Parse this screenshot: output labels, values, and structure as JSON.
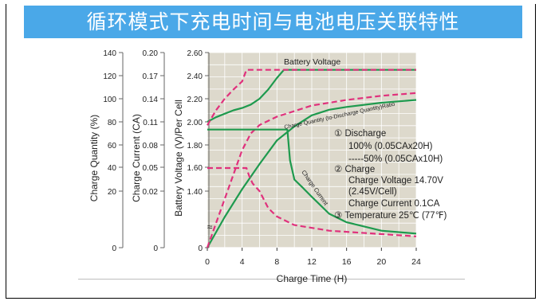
{
  "slide": {
    "title": "循环模式下充电时间与电池电压关联特性"
  },
  "chart_data": {
    "type": "line",
    "xlabel": "Charge Time (H)",
    "xlim": [
      0,
      24
    ],
    "x_ticks": [
      "0",
      "4",
      "8",
      "12",
      "16",
      "20",
      "24"
    ],
    "y_axes": [
      {
        "label": "Charge Quantity (%)",
        "ticks": [
          "0",
          "20",
          "40",
          "60",
          "80",
          "100",
          "120",
          "140"
        ]
      },
      {
        "label": "Charge Current (CA)",
        "ticks": [
          "0",
          "0.02",
          "0.05",
          "0.08",
          "0.11",
          "0.14",
          "0.17",
          "0.20"
        ]
      },
      {
        "label": "Battery Voltage (V)/Per Cell",
        "ticks": [
          "0",
          "1.40",
          "1.60",
          "1.80",
          "2.00",
          "2.20",
          "2.40",
          "2.60"
        ]
      }
    ],
    "series": [
      {
        "name": "Battery Voltage",
        "style": "solid",
        "color": "#1e9a4e",
        "points": [
          [
            0,
            2.0
          ],
          [
            1,
            2.04
          ],
          [
            2,
            2.07
          ],
          [
            3,
            2.1
          ],
          [
            4,
            2.12
          ],
          [
            5,
            2.15
          ],
          [
            6,
            2.2
          ],
          [
            7,
            2.28
          ],
          [
            8,
            2.38
          ],
          [
            8.8,
            2.45
          ],
          [
            24,
            2.45
          ]
        ]
      },
      {
        "name": "Battery Voltage",
        "style": "dashed",
        "color": "#e0317c",
        "points": [
          [
            0,
            1.97
          ],
          [
            1,
            2.1
          ],
          [
            2,
            2.2
          ],
          [
            3,
            2.28
          ],
          [
            4,
            2.35
          ],
          [
            4.5,
            2.45
          ],
          [
            24,
            2.45
          ]
        ]
      },
      {
        "name": "Charge Quantity (to-Discharge Quantity)Ratio",
        "style": "solid",
        "color": "#1e9a4e",
        "points": [
          [
            0,
            0
          ],
          [
            2,
            22
          ],
          [
            4,
            42
          ],
          [
            6,
            60
          ],
          [
            8,
            77
          ],
          [
            9,
            82
          ],
          [
            10,
            87
          ],
          [
            12,
            95
          ],
          [
            14,
            99
          ],
          [
            16,
            101
          ],
          [
            20,
            104
          ],
          [
            24,
            106
          ]
        ]
      },
      {
        "name": "Charge Quantity (to-Discharge Quantity)Ratio",
        "style": "dashed",
        "color": "#e0317c",
        "points": [
          [
            0,
            0
          ],
          [
            2,
            35
          ],
          [
            4,
            70
          ],
          [
            5,
            82
          ],
          [
            6,
            88
          ],
          [
            8,
            94
          ],
          [
            10,
            98
          ],
          [
            12,
            102
          ],
          [
            16,
            106
          ],
          [
            20,
            109
          ],
          [
            24,
            111
          ]
        ]
      },
      {
        "name": "Charge Current",
        "style": "solid",
        "color": "#1e9a4e",
        "points": [
          [
            0,
            0.1
          ],
          [
            9.2,
            0.1
          ],
          [
            9.5,
            0.06
          ],
          [
            10,
            0.035
          ],
          [
            11,
            0.024
          ],
          [
            12,
            0.018
          ],
          [
            14,
            0.012
          ],
          [
            16,
            0.009
          ],
          [
            20,
            0.006
          ],
          [
            24,
            0.005
          ]
        ]
      },
      {
        "name": "Charge Current",
        "style": "dashed",
        "color": "#e0317c",
        "points": [
          [
            0,
            0.05
          ],
          [
            4.5,
            0.05
          ],
          [
            4.8,
            0.04
          ],
          [
            5.2,
            0.03
          ],
          [
            6,
            0.02
          ],
          [
            7,
            0.014
          ],
          [
            8,
            0.011
          ],
          [
            10,
            0.008
          ],
          [
            14,
            0.006
          ],
          [
            24,
            0.004
          ]
        ]
      }
    ],
    "curve_labels": {
      "voltage": "Battery Voltage",
      "quantity": "Charge Quantity (to-Discharge Quantity)Ratio",
      "current": "Charge Current"
    },
    "legend_lines": [
      "① Discharge",
      "100% (0.05CAx20H)",
      "-----50% (0.05CAx10H)",
      "② Charge",
      "Charge Voltage 14.70V",
      "(2.45V/Cell)",
      "Charge Current 0.1CA",
      "③ Temperature 25℃ (77℉)"
    ],
    "axis_break": "≈",
    "plot_background": "#ddd9cc",
    "grid": true
  }
}
